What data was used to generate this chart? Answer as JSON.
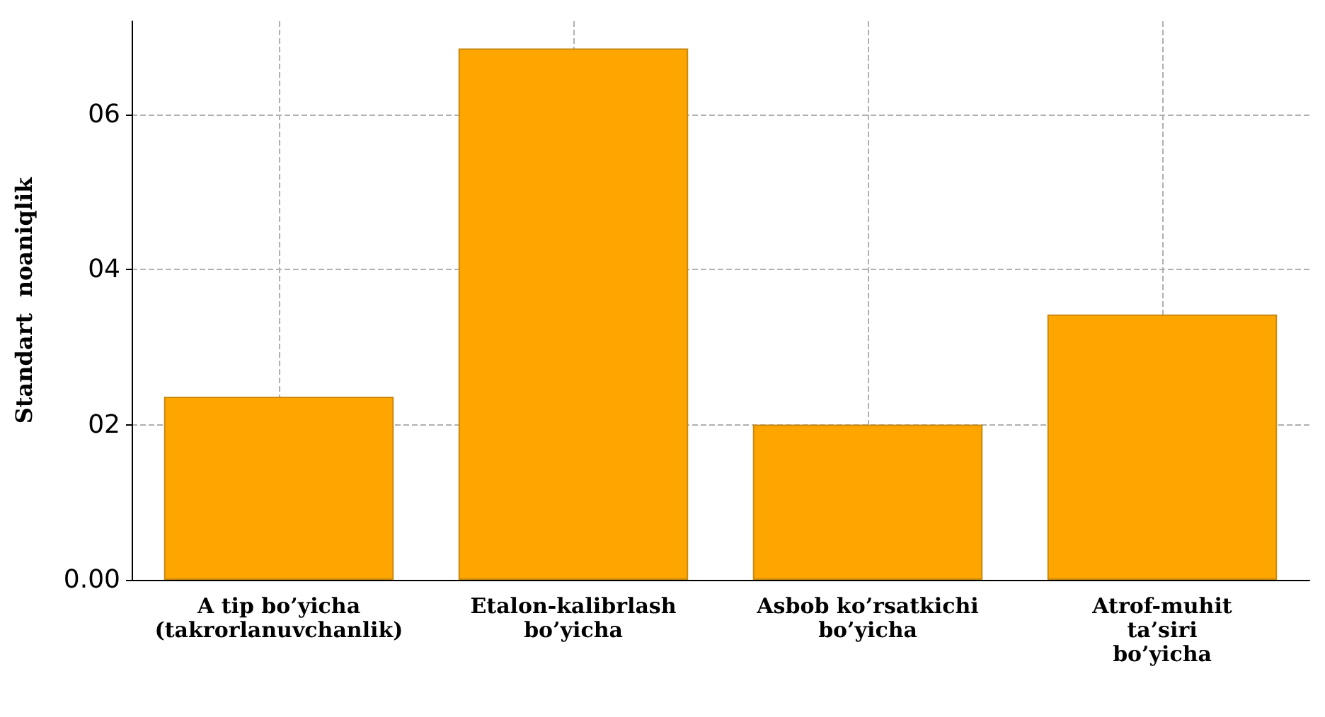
{
  "chart_data": {
    "type": "bar",
    "ylabel": "Standart  noaniqlik",
    "categories": [
      "A tip bo’yicha\n(takrorlanuvchanlik)",
      "Etalon-kalibrlash\nbo’yicha",
      "Asbob ko’rsatkichi\nbo’yicha",
      "Atrof-muhit\nta’siri\nbo’yicha"
    ],
    "values": [
      2.36,
      6.85,
      2.0,
      3.42
    ],
    "color": "#ffa500",
    "ylim": [
      0,
      7.2
    ],
    "yticks": [
      {
        "value": 0,
        "label": "0.00"
      },
      {
        "value": 2,
        "label": "02"
      },
      {
        "value": 4,
        "label": "04"
      },
      {
        "value": 6,
        "label": "06"
      }
    ],
    "grid": true
  }
}
